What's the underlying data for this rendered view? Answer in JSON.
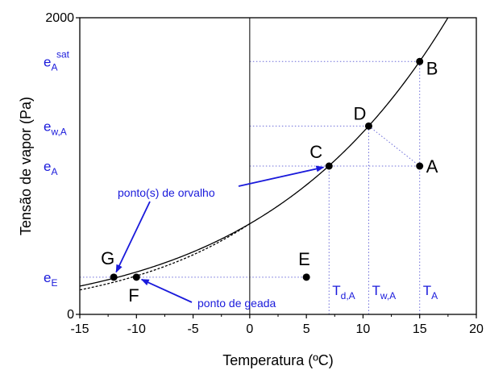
{
  "chart_data": {
    "type": "line",
    "title": "",
    "xlabel": "Temperatura (ºC)",
    "ylabel": "Tensão de vapor (Pa)",
    "xlim": [
      -15,
      20
    ],
    "ylim": [
      0,
      2000
    ],
    "x_ticks": [
      -15,
      -10,
      -5,
      0,
      5,
      10,
      15,
      20
    ],
    "y_tick_labels": [
      {
        "value": 0,
        "label": "0"
      },
      {
        "value": 2000,
        "label": "2000"
      }
    ],
    "grid": false,
    "series": [
      {
        "style": "solid",
        "curve": "saturation_over_water",
        "x_range": [
          -15,
          17.6
        ]
      },
      {
        "style": "dashed",
        "curve": "saturation_over_ice",
        "x_range": [
          -15,
          0
        ]
      }
    ],
    "points": [
      {
        "label": "A",
        "x": 15,
        "y": 1000
      },
      {
        "label": "B",
        "x": 15,
        "y": 1705
      },
      {
        "label": "C",
        "x": 7,
        "y": 1000
      },
      {
        "label": "D",
        "x": 10.5,
        "y": 1270
      },
      {
        "label": "E",
        "x": 5,
        "y": 251
      },
      {
        "label": "F",
        "x": -10,
        "y": 251
      },
      {
        "label": "G",
        "x": -12,
        "y": 251
      }
    ],
    "guides": [
      {
        "from": [
          0,
          1705
        ],
        "to": [
          15,
          1705
        ]
      },
      {
        "from": [
          0,
          1270
        ],
        "to": [
          10.5,
          1270
        ]
      },
      {
        "from": [
          0,
          1000
        ],
        "to": [
          15,
          1000
        ]
      },
      {
        "from": [
          -15,
          251
        ],
        "to": [
          -12,
          251
        ]
      },
      {
        "from": [
          -10,
          251
        ],
        "to": [
          5,
          251
        ]
      },
      {
        "from": [
          7,
          0
        ],
        "to": [
          7,
          1000
        ]
      },
      {
        "from": [
          10.5,
          0
        ],
        "to": [
          10.5,
          1270
        ]
      },
      {
        "from": [
          15,
          0
        ],
        "to": [
          15,
          1705
        ]
      },
      {
        "from": [
          10.5,
          1270
        ],
        "to": [
          15,
          1000
        ]
      }
    ],
    "zero_line_x": 0,
    "y_annotations": [
      {
        "main": "e",
        "sub": "A",
        "sup": "sat",
        "value": 1705
      },
      {
        "main": "e",
        "sub": "w,A",
        "sup": "",
        "value": 1270
      },
      {
        "main": "e",
        "sub": "A",
        "sup": "",
        "value": 1000
      },
      {
        "main": "e",
        "sub": "E",
        "sup": "",
        "value": 251
      }
    ],
    "x_annotations": [
      {
        "main": "T",
        "sub": "d,A",
        "x": 7
      },
      {
        "main": "T",
        "sub": "w,A",
        "x": 10.5
      },
      {
        "main": "T",
        "sub": "A",
        "x": 15
      }
    ],
    "annotations": [
      {
        "text": "ponto(s) de orvalho",
        "arrows_to": [
          "C",
          "G"
        ]
      },
      {
        "text": "ponto de geada",
        "arrows_to": [
          "F"
        ]
      }
    ],
    "colors": {
      "annotation": "#1a1adb",
      "guide": "#6d6dd9",
      "curve": "#000000"
    }
  }
}
